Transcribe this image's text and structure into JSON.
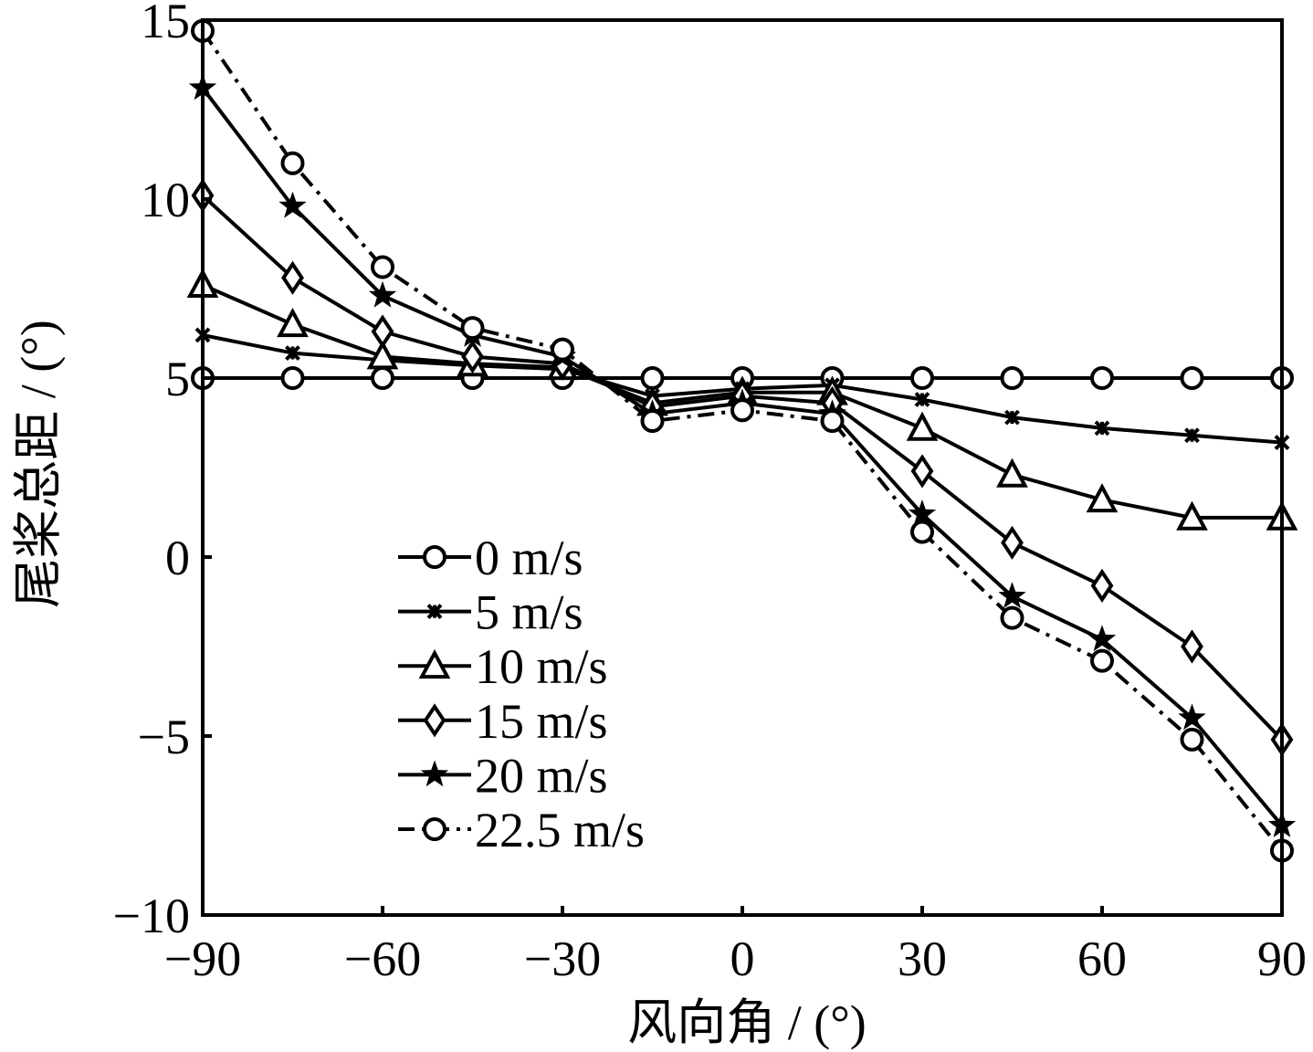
{
  "chart_data": {
    "type": "line",
    "title": "",
    "xlabel": "风向角 / (°)",
    "ylabel": "尾桨总距 / (°)",
    "xlim": [
      -90,
      90
    ],
    "ylim": [
      -10,
      15
    ],
    "xticks": [
      -90,
      -60,
      -30,
      0,
      30,
      60,
      90
    ],
    "xtick_labels": [
      "−90",
      "−60",
      "−30",
      "0",
      "30",
      "60",
      "90"
    ],
    "yticks": [
      -10,
      -5,
      0,
      5,
      10,
      15
    ],
    "ytick_labels": [
      "−10",
      "−5",
      "0",
      "5",
      "10",
      "15"
    ],
    "grid": false,
    "legend_position": "lower-left",
    "x": [
      -90,
      -75,
      -60,
      -45,
      -30,
      -15,
      0,
      15,
      30,
      45,
      60,
      75,
      90
    ],
    "series": [
      {
        "name": "0 m/s",
        "marker": "circle",
        "dashed": false,
        "values": [
          5.0,
          5.0,
          5.0,
          5.0,
          5.0,
          5.0,
          5.0,
          5.0,
          5.0,
          5.0,
          5.0,
          5.0,
          5.0
        ]
      },
      {
        "name": "5 m/s",
        "marker": "x",
        "dashed": false,
        "values": [
          6.2,
          5.7,
          5.5,
          5.35,
          5.25,
          4.5,
          4.7,
          4.8,
          4.4,
          3.9,
          3.6,
          3.4,
          3.2
        ]
      },
      {
        "name": "10 m/s",
        "marker": "triangle",
        "dashed": false,
        "values": [
          7.6,
          6.5,
          5.6,
          5.4,
          5.3,
          4.3,
          4.6,
          4.6,
          3.6,
          2.3,
          1.6,
          1.1,
          1.1
        ]
      },
      {
        "name": "15 m/s",
        "marker": "diamond",
        "dashed": false,
        "values": [
          10.1,
          7.8,
          6.3,
          5.6,
          5.4,
          4.2,
          4.5,
          4.3,
          2.4,
          0.4,
          -0.8,
          -2.5,
          -5.1
        ]
      },
      {
        "name": "20 m/s",
        "marker": "star",
        "dashed": false,
        "values": [
          13.1,
          9.8,
          7.3,
          6.2,
          5.6,
          4.0,
          4.3,
          4.0,
          1.2,
          -1.1,
          -2.3,
          -4.5,
          -7.5
        ]
      },
      {
        "name": "22.5 m/s",
        "marker": "circle",
        "dashed": true,
        "values": [
          14.7,
          11.0,
          8.1,
          6.4,
          5.8,
          3.8,
          4.1,
          3.8,
          0.7,
          -1.7,
          -2.9,
          -5.1,
          -8.2
        ]
      }
    ]
  }
}
